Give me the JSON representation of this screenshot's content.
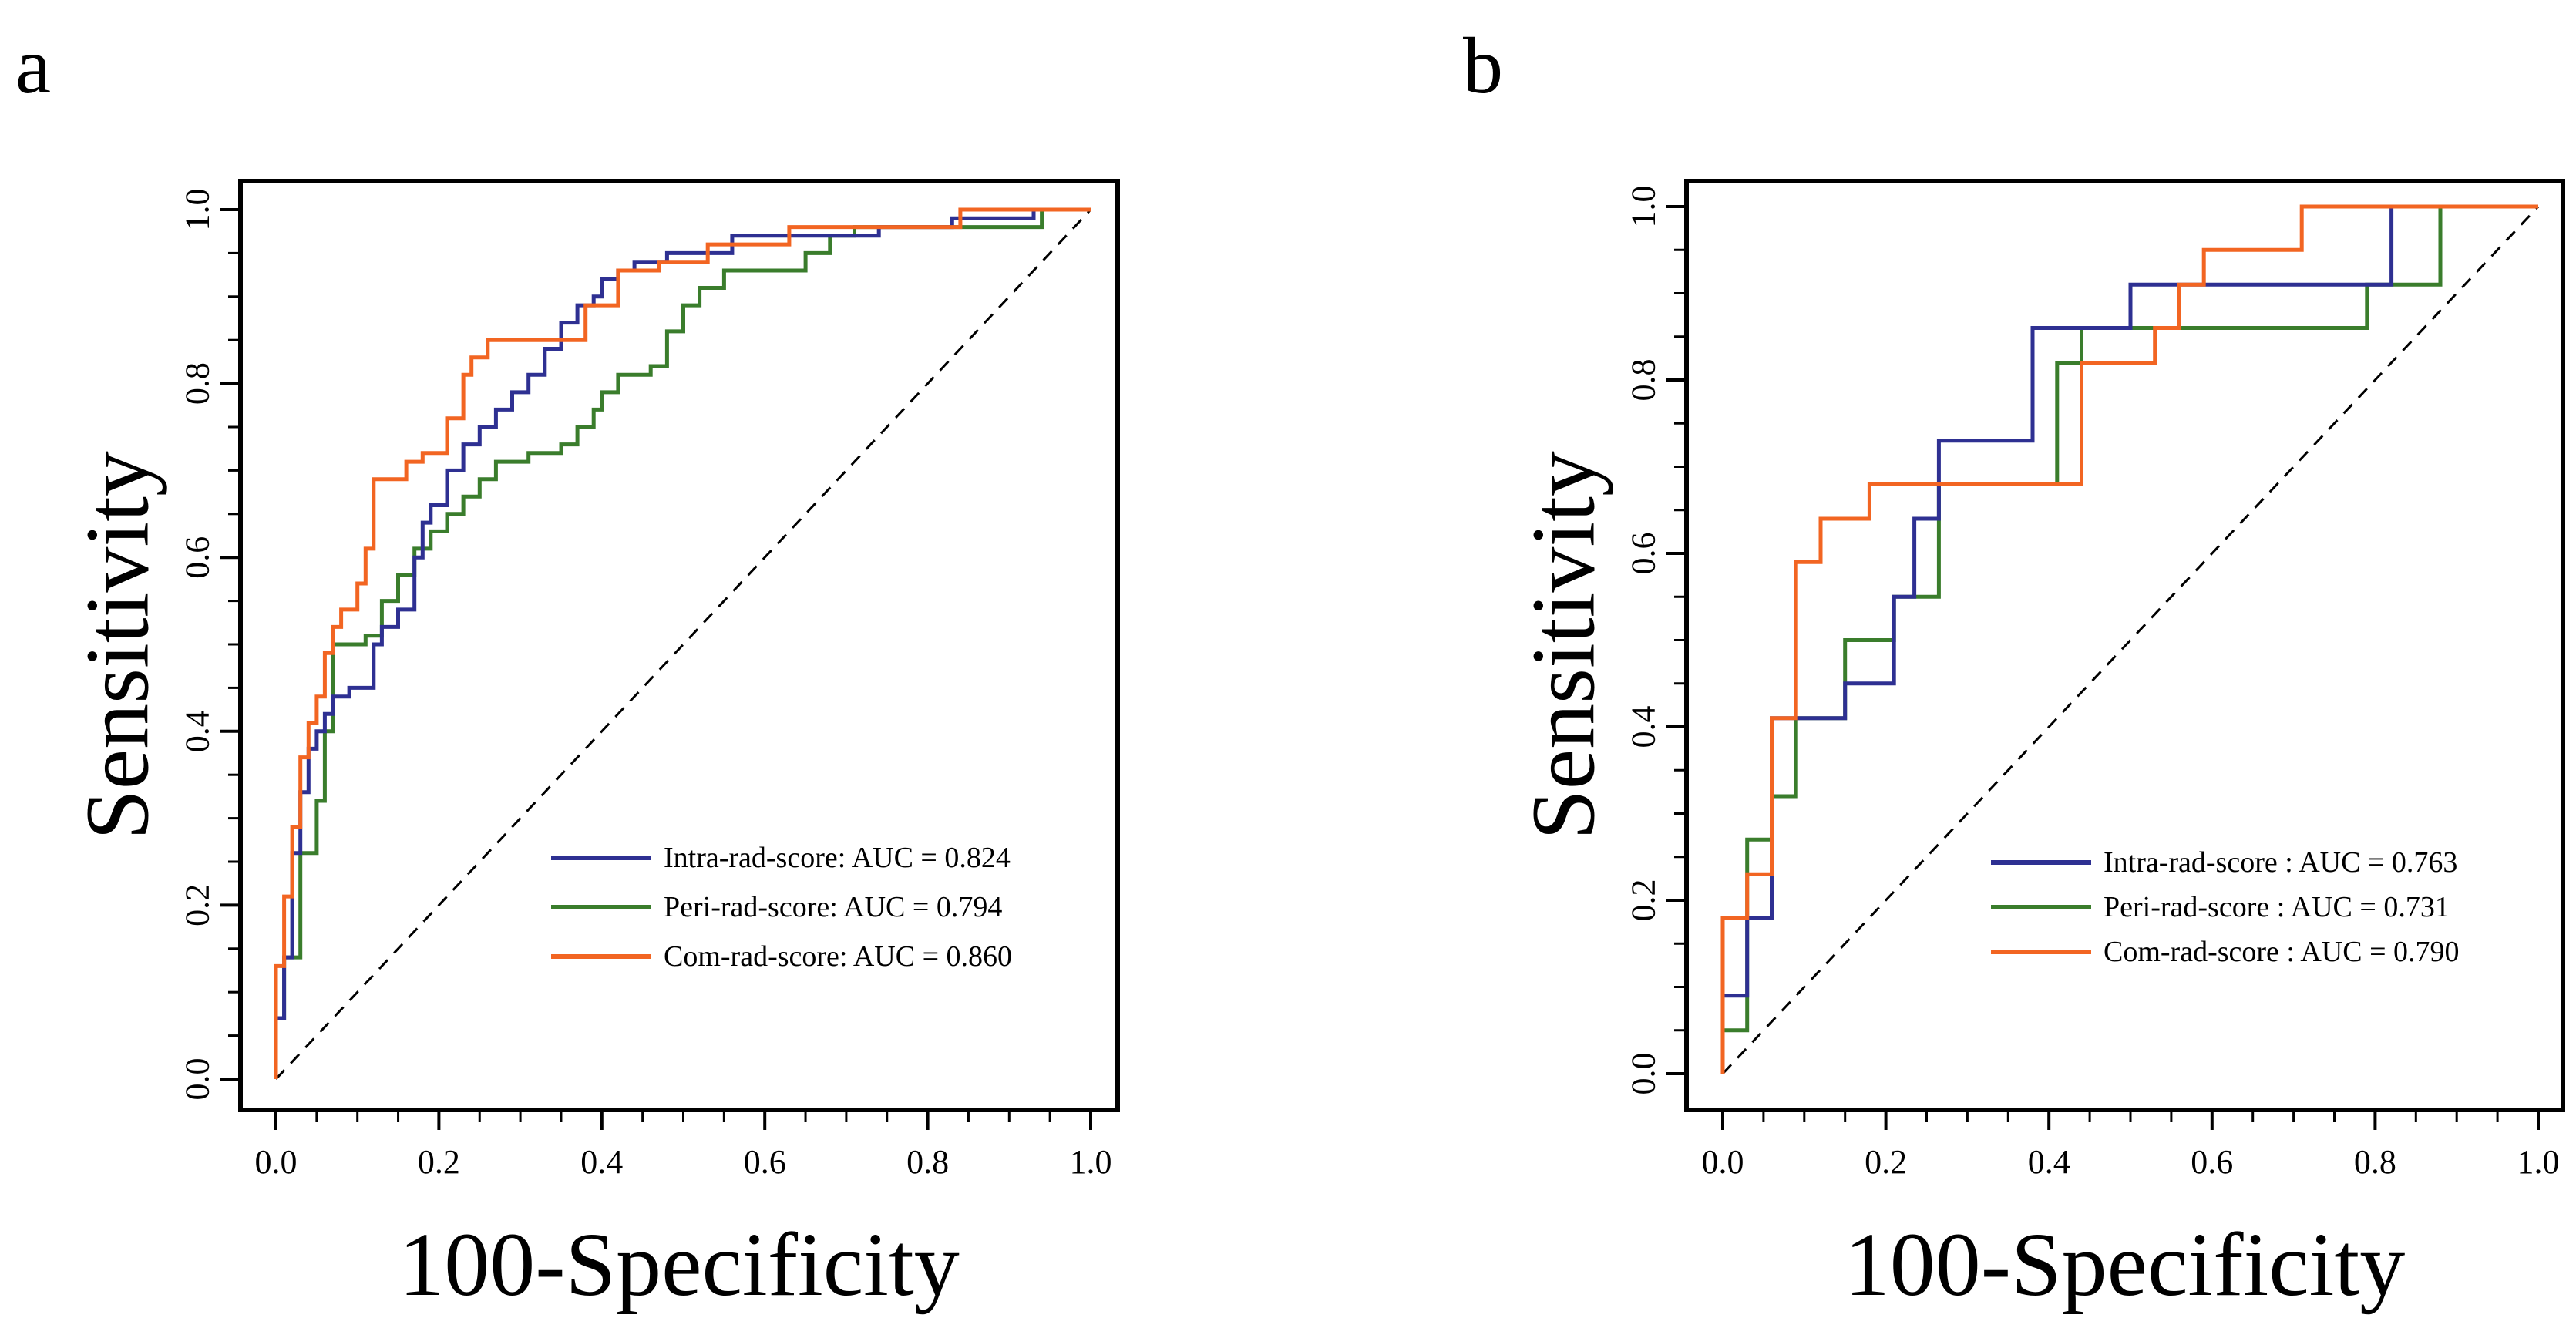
{
  "figure": {
    "panels": [
      {
        "letter": "a"
      },
      {
        "letter": "b"
      }
    ]
  },
  "colors": {
    "intra": "#2e3092",
    "peri": "#3a7d2c",
    "com": "#f26522",
    "diagonal": "#000000",
    "axes": "#000000"
  },
  "chart_data": [
    {
      "type": "line",
      "panel": "a",
      "title": "",
      "xlabel": "100-Specificity",
      "ylabel": "Sensitivity",
      "xlim": [
        0,
        1
      ],
      "ylim": [
        0,
        1
      ],
      "xticks": [
        "0.0",
        "0.2",
        "0.4",
        "0.6",
        "0.8",
        "1.0"
      ],
      "yticks": [
        "0.0",
        "0.2",
        "0.4",
        "0.6",
        "0.8",
        "1.0"
      ],
      "grid": false,
      "legend_position": "bottom-right",
      "reference_line": "diagonal dashed",
      "series": [
        {
          "name": "Intra-rad-score: AUC = 0.824",
          "key": "intra",
          "x": [
            0,
            0,
            0.01,
            0.01,
            0.02,
            0.02,
            0.03,
            0.03,
            0.04,
            0.04,
            0.05,
            0.05,
            0.06,
            0.06,
            0.07,
            0.07,
            0.09,
            0.09,
            0.12,
            0.12,
            0.13,
            0.13,
            0.15,
            0.15,
            0.17,
            0.17,
            0.18,
            0.18,
            0.19,
            0.19,
            0.21,
            0.21,
            0.23,
            0.23,
            0.25,
            0.25,
            0.27,
            0.27,
            0.29,
            0.29,
            0.31,
            0.31,
            0.33,
            0.33,
            0.35,
            0.35,
            0.37,
            0.37,
            0.39,
            0.39,
            0.4,
            0.4,
            0.42,
            0.42,
            0.44,
            0.44,
            0.48,
            0.48,
            0.56,
            0.56,
            0.63,
            0.63,
            0.74,
            0.74,
            0.83,
            0.83,
            0.93,
            0.93,
            1.0
          ],
          "y": [
            0,
            0.07,
            0.07,
            0.14,
            0.14,
            0.26,
            0.26,
            0.33,
            0.33,
            0.38,
            0.38,
            0.4,
            0.4,
            0.42,
            0.42,
            0.44,
            0.44,
            0.45,
            0.45,
            0.5,
            0.5,
            0.52,
            0.52,
            0.54,
            0.54,
            0.6,
            0.6,
            0.64,
            0.64,
            0.66,
            0.66,
            0.7,
            0.7,
            0.73,
            0.73,
            0.75,
            0.75,
            0.77,
            0.77,
            0.79,
            0.79,
            0.81,
            0.81,
            0.84,
            0.84,
            0.87,
            0.87,
            0.89,
            0.89,
            0.9,
            0.9,
            0.92,
            0.92,
            0.93,
            0.93,
            0.94,
            0.94,
            0.95,
            0.95,
            0.97,
            0.97,
            0.97,
            0.97,
            0.98,
            0.98,
            0.99,
            0.99,
            1.0,
            1.0
          ]
        },
        {
          "name": "Peri-rad-score: AUC = 0.794",
          "key": "peri",
          "x": [
            0,
            0,
            0.01,
            0.01,
            0.03,
            0.03,
            0.05,
            0.05,
            0.06,
            0.06,
            0.07,
            0.07,
            0.11,
            0.11,
            0.13,
            0.13,
            0.15,
            0.15,
            0.17,
            0.17,
            0.19,
            0.19,
            0.21,
            0.21,
            0.23,
            0.23,
            0.25,
            0.25,
            0.27,
            0.27,
            0.31,
            0.31,
            0.35,
            0.35,
            0.37,
            0.37,
            0.39,
            0.39,
            0.4,
            0.4,
            0.42,
            0.42,
            0.46,
            0.46,
            0.48,
            0.48,
            0.5,
            0.5,
            0.52,
            0.52,
            0.55,
            0.55,
            0.65,
            0.65,
            0.68,
            0.68,
            0.71,
            0.71,
            0.94,
            0.94,
            1.0
          ],
          "y": [
            0,
            0.07,
            0.07,
            0.14,
            0.14,
            0.26,
            0.26,
            0.32,
            0.32,
            0.4,
            0.4,
            0.5,
            0.5,
            0.51,
            0.51,
            0.55,
            0.55,
            0.58,
            0.58,
            0.61,
            0.61,
            0.63,
            0.63,
            0.65,
            0.65,
            0.67,
            0.67,
            0.69,
            0.69,
            0.71,
            0.71,
            0.72,
            0.72,
            0.73,
            0.73,
            0.75,
            0.75,
            0.77,
            0.77,
            0.79,
            0.79,
            0.81,
            0.81,
            0.82,
            0.82,
            0.86,
            0.86,
            0.89,
            0.89,
            0.91,
            0.91,
            0.93,
            0.93,
            0.95,
            0.95,
            0.97,
            0.97,
            0.98,
            0.98,
            1.0,
            1.0
          ]
        },
        {
          "name": "Com-rad-score: AUC = 0.860",
          "key": "com",
          "x": [
            0,
            0,
            0.01,
            0.01,
            0.02,
            0.02,
            0.03,
            0.03,
            0.04,
            0.04,
            0.05,
            0.05,
            0.06,
            0.06,
            0.07,
            0.07,
            0.08,
            0.08,
            0.1,
            0.1,
            0.11,
            0.11,
            0.12,
            0.12,
            0.16,
            0.16,
            0.18,
            0.18,
            0.21,
            0.21,
            0.23,
            0.23,
            0.24,
            0.24,
            0.26,
            0.26,
            0.3,
            0.3,
            0.38,
            0.38,
            0.42,
            0.42,
            0.47,
            0.47,
            0.53,
            0.53,
            0.63,
            0.63,
            0.84,
            0.84,
            1.0
          ],
          "y": [
            0,
            0.13,
            0.13,
            0.21,
            0.21,
            0.29,
            0.29,
            0.37,
            0.37,
            0.41,
            0.41,
            0.44,
            0.44,
            0.49,
            0.49,
            0.52,
            0.52,
            0.54,
            0.54,
            0.57,
            0.57,
            0.61,
            0.61,
            0.69,
            0.69,
            0.71,
            0.71,
            0.72,
            0.72,
            0.76,
            0.76,
            0.81,
            0.81,
            0.83,
            0.83,
            0.85,
            0.85,
            0.85,
            0.85,
            0.89,
            0.89,
            0.93,
            0.93,
            0.94,
            0.94,
            0.96,
            0.96,
            0.98,
            0.98,
            1.0,
            1.0
          ]
        }
      ]
    },
    {
      "type": "line",
      "panel": "b",
      "title": "",
      "xlabel": "100-Specificity",
      "ylabel": "Sensitivity",
      "xlim": [
        0,
        1
      ],
      "ylim": [
        0,
        1
      ],
      "xticks": [
        "0.0",
        "0.2",
        "0.4",
        "0.6",
        "0.8",
        "1.0"
      ],
      "yticks": [
        "0.0",
        "0.2",
        "0.4",
        "0.6",
        "0.8",
        "1.0"
      ],
      "grid": false,
      "legend_position": "bottom-right",
      "reference_line": "diagonal dashed",
      "series": [
        {
          "name": "Intra-rad-score : AUC = 0.763",
          "key": "intra",
          "x": [
            0,
            0,
            0.03,
            0.03,
            0.06,
            0.06,
            0.09,
            0.09,
            0.15,
            0.15,
            0.21,
            0.21,
            0.235,
            0.235,
            0.265,
            0.265,
            0.38,
            0.38,
            0.5,
            0.5,
            0.82,
            0.82,
            1.0
          ],
          "y": [
            0,
            0.09,
            0.09,
            0.18,
            0.18,
            0.41,
            0.41,
            0.41,
            0.41,
            0.45,
            0.45,
            0.55,
            0.55,
            0.64,
            0.64,
            0.73,
            0.73,
            0.86,
            0.86,
            0.91,
            0.91,
            1.0,
            1.0
          ]
        },
        {
          "name": "Peri-rad-score : AUC = 0.731",
          "key": "peri",
          "x": [
            0,
            0,
            0.03,
            0.03,
            0.06,
            0.06,
            0.09,
            0.09,
            0.15,
            0.15,
            0.21,
            0.21,
            0.265,
            0.265,
            0.41,
            0.41,
            0.44,
            0.44,
            0.79,
            0.79,
            0.88,
            0.88,
            1.0
          ],
          "y": [
            0,
            0.05,
            0.05,
            0.27,
            0.27,
            0.32,
            0.32,
            0.41,
            0.41,
            0.5,
            0.5,
            0.55,
            0.55,
            0.68,
            0.68,
            0.82,
            0.82,
            0.86,
            0.86,
            0.91,
            0.91,
            1.0,
            1.0
          ]
        },
        {
          "name": "Com-rad-score : AUC = 0.790",
          "key": "com",
          "x": [
            0,
            0,
            0.03,
            0.03,
            0.06,
            0.06,
            0.09,
            0.09,
            0.12,
            0.12,
            0.18,
            0.18,
            0.44,
            0.44,
            0.53,
            0.53,
            0.56,
            0.56,
            0.59,
            0.59,
            0.71,
            0.71,
            1.0
          ],
          "y": [
            0,
            0.18,
            0.18,
            0.23,
            0.23,
            0.41,
            0.41,
            0.59,
            0.59,
            0.64,
            0.64,
            0.68,
            0.68,
            0.82,
            0.82,
            0.86,
            0.86,
            0.91,
            0.91,
            0.95,
            0.95,
            1.0,
            1.0
          ]
        }
      ]
    }
  ]
}
